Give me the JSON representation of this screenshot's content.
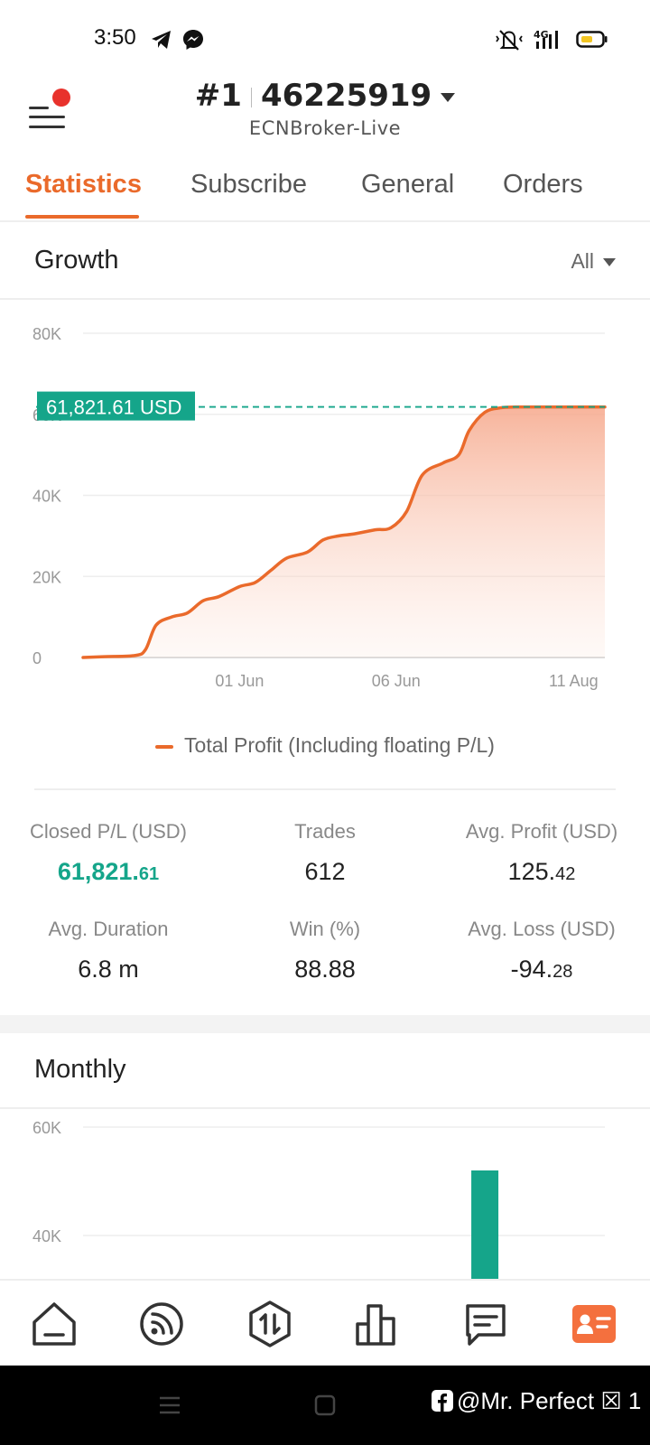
{
  "status_bar": {
    "time": "3:50"
  },
  "header": {
    "account_rank": "#1",
    "account_number": "46225919",
    "server": "ECNBroker-Live"
  },
  "tabs": [
    {
      "label": "Statistics",
      "active": true
    },
    {
      "label": "Subscribe",
      "active": false
    },
    {
      "label": "General",
      "active": false
    },
    {
      "label": "Orders",
      "active": false
    }
  ],
  "growth": {
    "title": "Growth",
    "range_label": "All",
    "current_label": "61,821.61 USD",
    "legend": "Total Profit (Including floating P/L)"
  },
  "chart_data": [
    {
      "type": "area",
      "y_ticks": [
        "0",
        "20K",
        "40K",
        "60K",
        "80K"
      ],
      "x_ticks": [
        {
          "label": "01 Jun",
          "x": 0.3
        },
        {
          "label": "06 Jun",
          "x": 0.6
        },
        {
          "label": "11 Aug",
          "x": 0.94
        }
      ],
      "ylim": [
        0,
        80000
      ],
      "series": [
        {
          "name": "Total Profit (Including floating P/L)",
          "color": "#ea6a2b",
          "x": [
            0,
            0.04,
            0.1,
            0.12,
            0.14,
            0.17,
            0.2,
            0.23,
            0.26,
            0.3,
            0.33,
            0.36,
            0.39,
            0.43,
            0.46,
            0.49,
            0.52,
            0.56,
            0.59,
            0.62,
            0.65,
            0.69,
            0.72,
            0.74,
            0.77,
            0.8,
            0.83,
            0.85,
            0.88,
            0.9,
            0.93,
            0.96,
            1.0
          ],
          "values": [
            0,
            200,
            500,
            2000,
            8000,
            10000,
            11000,
            14000,
            15000,
            17500,
            18500,
            21500,
            24500,
            26000,
            29000,
            30000,
            30500,
            31500,
            32000,
            36000,
            45000,
            48000,
            50000,
            56000,
            60500,
            61600,
            61800,
            61821,
            61821,
            61821,
            61821,
            61821,
            61821
          ]
        }
      ],
      "reference_line": 61821.61,
      "grid": true
    },
    {
      "type": "bar",
      "y_ticks": [
        "40K",
        "60K"
      ],
      "ylim": [
        33000,
        67000
      ],
      "bars": [
        {
          "x": 0.77,
          "value": 52000,
          "color": "#15a58a"
        }
      ]
    }
  ],
  "stats": [
    {
      "label": "Closed P/L (USD)",
      "int": "61,821.",
      "dec": "61",
      "green": true
    },
    {
      "label": "Trades",
      "int": "612",
      "dec": "",
      "green": false
    },
    {
      "label": "Avg. Profit (USD)",
      "int": "125.",
      "dec": "42",
      "green": false
    },
    {
      "label": "Avg. Duration",
      "int": "6.8 m",
      "dec": "",
      "green": false
    },
    {
      "label": "Win (%)",
      "int": "88.88",
      "dec": "",
      "green": false
    },
    {
      "label": "Avg. Loss (USD)",
      "int": "-94.",
      "dec": "28",
      "green": false
    }
  ],
  "monthly": {
    "title": "Monthly"
  },
  "bottom_nav": [
    {
      "icon": "home-icon",
      "active": false
    },
    {
      "icon": "signal-feed-icon",
      "active": false
    },
    {
      "icon": "trade-icon",
      "active": false
    },
    {
      "icon": "chart-bars-icon",
      "active": false
    },
    {
      "icon": "chat-icon",
      "active": false
    },
    {
      "icon": "profile-card-icon",
      "active": true,
      "color": "#f4703e"
    }
  ],
  "watermark": "@Mr. Perfect ☒ 1"
}
